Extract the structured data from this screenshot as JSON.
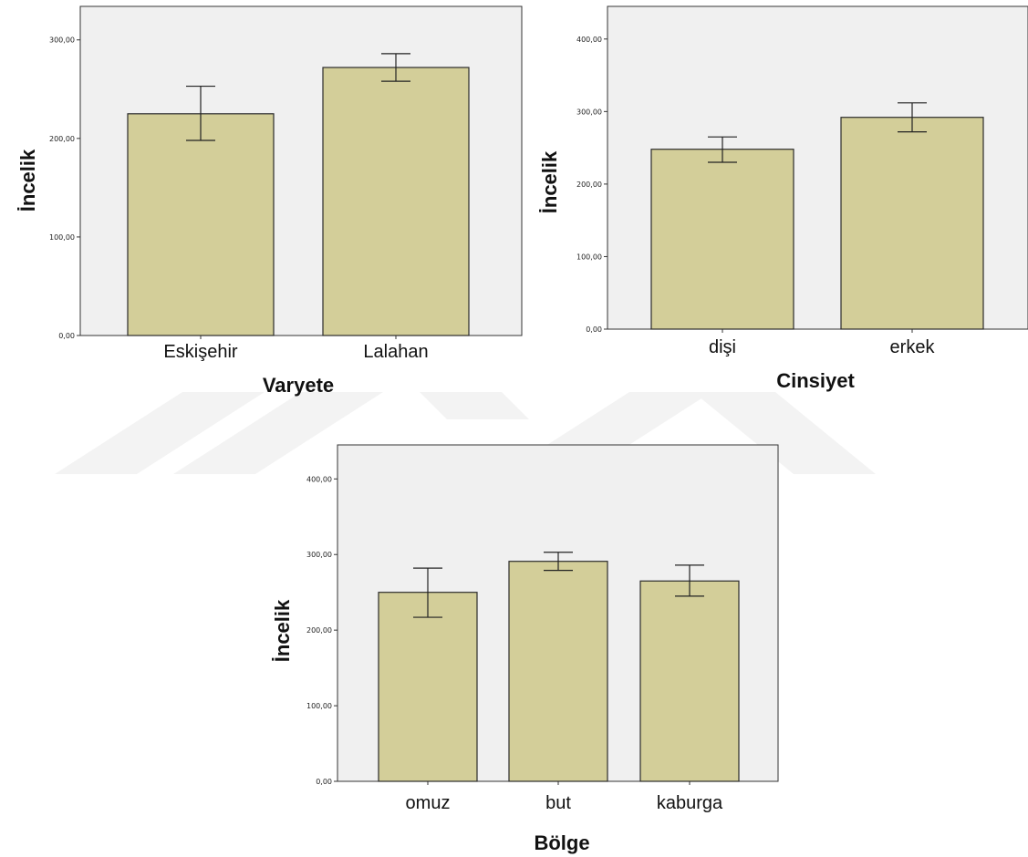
{
  "colors": {
    "plot_bg": "#f0f0f0",
    "bar_fill": "#d3ce99",
    "bar_stroke": "#2b2b2b",
    "axis": "#333333",
    "watermark": "#f3f3f3"
  },
  "chart_data": [
    {
      "type": "bar",
      "categories": [
        "Eskişehir",
        "Lalahan"
      ],
      "values": [
        225,
        272
      ],
      "error_low": [
        198,
        258
      ],
      "error_high": [
        253,
        286
      ],
      "yticks": [
        "0,00",
        "100,00",
        "200,00",
        "300,00"
      ],
      "ytick_values": [
        0,
        100,
        200,
        300
      ],
      "ylim": [
        0,
        334
      ],
      "xlabel": "Varyete",
      "ylabel": "İncelik",
      "grid": false
    },
    {
      "type": "bar",
      "categories": [
        "dişi",
        "erkek"
      ],
      "values": [
        248,
        292
      ],
      "error_low": [
        230,
        272
      ],
      "error_high": [
        265,
        312
      ],
      "yticks": [
        "0,00",
        "100,00",
        "200,00",
        "300,00",
        "400,00"
      ],
      "ytick_values": [
        0,
        100,
        200,
        300,
        400
      ],
      "ylim": [
        0,
        445
      ],
      "xlabel": "Cinsiyet",
      "ylabel": "İncelik",
      "grid": false
    },
    {
      "type": "bar",
      "categories": [
        "omuz",
        "but",
        "kaburga"
      ],
      "values": [
        250,
        291,
        265
      ],
      "error_low": [
        217,
        279,
        245
      ],
      "error_high": [
        282,
        303,
        286
      ],
      "yticks": [
        "0,00",
        "100,00",
        "200,00",
        "300,00",
        "400,00"
      ],
      "ytick_values": [
        0,
        100,
        200,
        300,
        400
      ],
      "ylim": [
        0,
        445
      ],
      "xlabel": "Bölge",
      "ylabel": "İncelik",
      "grid": false
    }
  ]
}
